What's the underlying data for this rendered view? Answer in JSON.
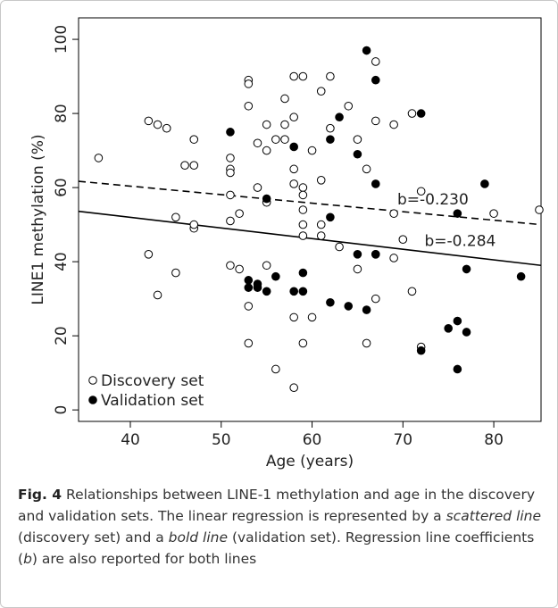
{
  "chart_data": {
    "type": "scatter",
    "xlabel": "Age (years)",
    "ylabel": "LINE1 methylation (%)",
    "xlim": [
      34.3,
      85.2
    ],
    "ylim": [
      -3.1,
      105.8
    ],
    "xticks": [
      40,
      50,
      60,
      70,
      80
    ],
    "yticks": [
      0,
      20,
      40,
      60,
      80,
      100
    ],
    "legend": "bottom-left",
    "series": [
      {
        "name": "Discovery set",
        "color": "#000000",
        "marker": "open",
        "x": [
          36.5,
          42,
          43,
          44,
          42,
          43,
          45,
          45,
          46,
          47,
          47,
          47,
          47,
          51,
          51,
          51,
          51,
          51,
          51,
          52,
          52,
          53,
          53,
          53,
          53,
          53,
          54,
          54,
          55,
          55,
          55,
          55,
          56,
          56,
          57,
          57,
          57,
          58,
          58,
          58,
          58,
          58,
          58,
          59,
          59,
          59,
          59,
          59,
          59,
          59,
          60,
          60,
          61,
          61,
          61,
          61,
          62,
          62,
          63,
          64,
          65,
          65,
          66,
          66,
          67,
          67,
          67,
          67,
          69,
          69,
          69,
          70,
          71,
          71,
          72,
          72,
          80,
          85
        ],
        "values": [
          68,
          78,
          77,
          76,
          42,
          31,
          52,
          37,
          66,
          66,
          73,
          49,
          50,
          68,
          65,
          64,
          58,
          51,
          39,
          53,
          38,
          89,
          88,
          82,
          28,
          18,
          72,
          60,
          77,
          70,
          56,
          39,
          73,
          11,
          84,
          77,
          73,
          90,
          79,
          65,
          61,
          25,
          6,
          90,
          60,
          58,
          54,
          50,
          47,
          18,
          70,
          25,
          86,
          62,
          50,
          47,
          90,
          76,
          44,
          82,
          73,
          38,
          65,
          18,
          94,
          78,
          42,
          30,
          77,
          53,
          41,
          46,
          80,
          32,
          59,
          17,
          53,
          54
        ]
      },
      {
        "name": "Validation set",
        "color": "#000000",
        "marker": "filled",
        "x": [
          51,
          53,
          53,
          54,
          54,
          55,
          55,
          56,
          58,
          58,
          59,
          59,
          62,
          62,
          62,
          63,
          64,
          65,
          65,
          66,
          66,
          67,
          67,
          67,
          72,
          72,
          75,
          76,
          76,
          76,
          77,
          77,
          79,
          83
        ],
        "values": [
          75,
          35,
          33,
          34,
          33,
          57,
          32,
          36,
          71,
          32,
          37,
          32,
          52,
          73,
          29,
          79,
          28,
          69,
          42,
          97,
          27,
          89,
          61,
          42,
          80,
          16,
          22,
          24,
          53,
          11,
          38,
          21,
          61,
          36
        ]
      }
    ],
    "lines": [
      {
        "style": "dashed",
        "x": [
          34.3,
          85.2
        ],
        "y": [
          61.7,
          50
        ]
      },
      {
        "style": "solid",
        "x": [
          34.3,
          85.2
        ],
        "y": [
          53.6,
          39
        ]
      }
    ],
    "annotations": [
      {
        "text": "b=-0.230",
        "x": 73.3,
        "y": 55.5
      },
      {
        "text": "b=-0.284",
        "x": 76.3,
        "y": 44.3
      }
    ]
  },
  "caption": {
    "label": "Fig. 4",
    "text1": " Relationships between LINE-1 methylation and age in the discovery and validation sets. The linear regression is represented by a ",
    "italic1": "scattered line",
    "text2": " (discovery set) and a ",
    "italic2": "bold line",
    "text3": " (validation set). Regression line coefficients (",
    "italic3": "b",
    "text4": ") are also reported for both lines"
  }
}
